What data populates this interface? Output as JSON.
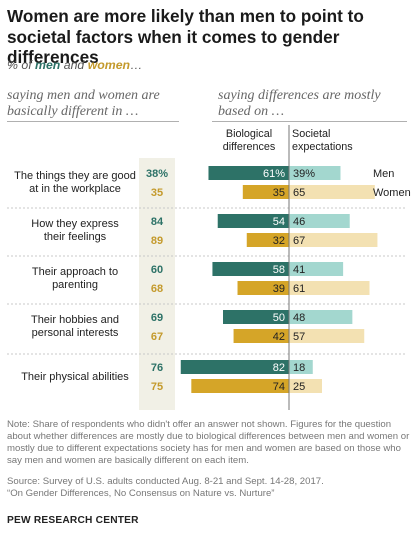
{
  "header": {
    "title": "Women are more likely than men to point to societal factors when it comes to gender differences",
    "subtitle_prefix": "% of",
    "subtitle_men": "men",
    "subtitle_and": "and",
    "subtitle_women": "women",
    "subtitle_suffix": "…",
    "left_column_heading": "saying men and women are basically different in …",
    "right_column_heading": "saying differences are mostly based on …",
    "bio_heading": "Biological differences",
    "soc_heading": "Societal expectations"
  },
  "colors": {
    "men_dark": "#2d7267",
    "men_light": "#a3d7cf",
    "women_dark": "#d5a528",
    "women_light": "#f3e1b2",
    "left_band": "#f1f0e6",
    "divider": "#777777",
    "men_text": "#2d7267",
    "women_text": "#c49a2c"
  },
  "chart_data": {
    "type": "bar",
    "categories": [
      "The things they are good at in the workplace",
      "How they express their feelings",
      "Their approach to parenting",
      "Their hobbies and personal interests",
      "Their physical abilities"
    ],
    "category_lines": [
      [
        "The things they are good",
        "at in the workplace"
      ],
      [
        "How they express",
        "their feelings"
      ],
      [
        "Their approach to",
        "parenting"
      ],
      [
        "Their hobbies and",
        "personal interests"
      ],
      [
        "Their physical abilities"
      ]
    ],
    "basically_different": {
      "men": [
        38,
        84,
        60,
        69,
        76
      ],
      "women": [
        35,
        89,
        68,
        67,
        75
      ],
      "men_labels": [
        "38%",
        "84",
        "60",
        "69",
        "76"
      ],
      "women_labels": [
        "35",
        "89",
        "68",
        "67",
        "75"
      ]
    },
    "biological_differences": {
      "men": [
        61,
        54,
        58,
        50,
        82
      ],
      "women": [
        35,
        32,
        39,
        42,
        74
      ],
      "men_labels": [
        "61%",
        "54",
        "58",
        "50",
        "82"
      ],
      "women_labels": [
        "35",
        "32",
        "39",
        "42",
        "74"
      ]
    },
    "societal_expectations": {
      "men": [
        39,
        46,
        41,
        48,
        18
      ],
      "women": [
        65,
        67,
        61,
        57,
        25
      ],
      "men_labels": [
        "39%",
        "46",
        "41",
        "48",
        "18"
      ],
      "women_labels": [
        "65",
        "67",
        "61",
        "57",
        "25"
      ]
    },
    "legend": [
      "Men",
      "Women"
    ],
    "legend_placement": "right of the first category"
  },
  "footer": {
    "note": "Note: Share of respondents who didn't offer an answer not shown. Figures for the question about whether differences are mostly due to biological differences between men and women or mostly due to different expectations society has for men and women are based on those who say men and women are basically different on each item.",
    "source": "Source: Survey of U.S. adults conducted Aug. 8-21 and Sept. 14-28, 2017.",
    "report": "“On Gender Differences, No Consensus on Nature vs. Nurture”",
    "org": "PEW RESEARCH CENTER"
  }
}
